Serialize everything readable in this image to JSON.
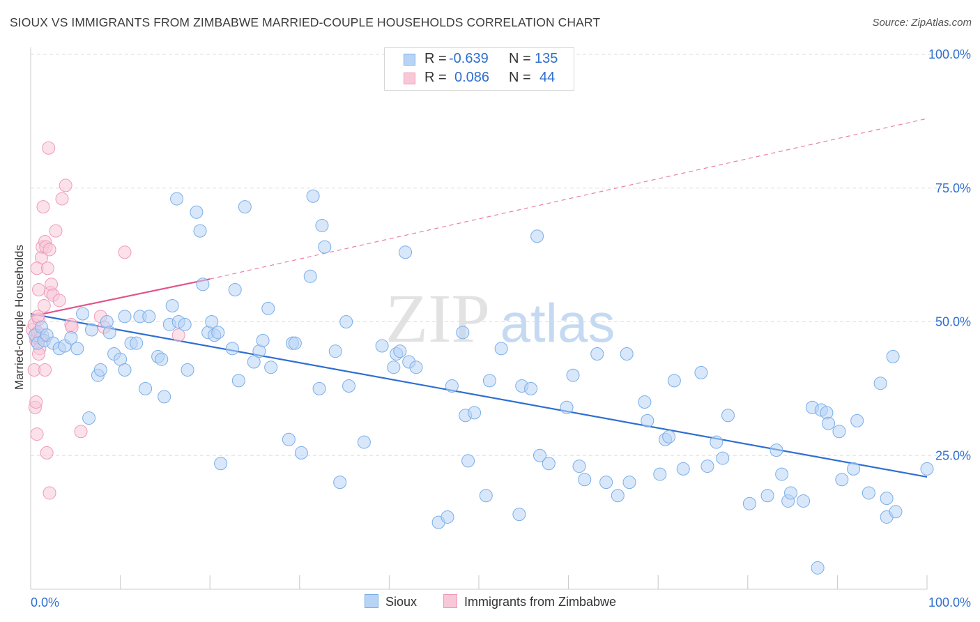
{
  "chart_data": {
    "type": "scatter",
    "title": "SIOUX VS IMMIGRANTS FROM ZIMBABWE MARRIED-COUPLE HOUSEHOLDS CORRELATION CHART",
    "source": "Source: ZipAtlas.com",
    "watermark": {
      "zip": "ZIP",
      "atlas": "atlas"
    },
    "ylabel": "Married-couple Households",
    "xlabel": "",
    "xlim": [
      0,
      100
    ],
    "ylim": [
      0,
      100
    ],
    "x_tick_labels": [
      "0.0%",
      "100.0%"
    ],
    "y_tick_labels": [
      "25.0%",
      "50.0%",
      "75.0%",
      "100.0%"
    ],
    "y_tick_values": [
      25,
      50,
      75,
      100
    ],
    "grid": true,
    "stats": [
      {
        "r_label": "R =",
        "r_value": "-0.639",
        "n_label": "N =",
        "n_value": "135"
      },
      {
        "r_label": "R =",
        "r_value": "0.086",
        "n_label": "N =",
        "n_value": "44"
      }
    ],
    "series": [
      {
        "name": "Sioux",
        "color": "#7aaee8",
        "fill": "#b8d3f5",
        "line_color": "#2f6fd0",
        "trend": {
          "x0": 0,
          "y0": 51.5,
          "x1": 100,
          "y1": 21.0
        },
        "points": [
          [
            0.5,
            47.5
          ],
          [
            0.8,
            46
          ],
          [
            1.2,
            49
          ],
          [
            1.5,
            46.5
          ],
          [
            1.8,
            47.5
          ],
          [
            2.5,
            46
          ],
          [
            3.2,
            45
          ],
          [
            3.8,
            45.5
          ],
          [
            4.5,
            47
          ],
          [
            5.2,
            45
          ],
          [
            5.8,
            51.5
          ],
          [
            6.5,
            32
          ],
          [
            6.8,
            48.5
          ],
          [
            7.5,
            40
          ],
          [
            7.8,
            41
          ],
          [
            8.5,
            50
          ],
          [
            8.8,
            48
          ],
          [
            9.3,
            44
          ],
          [
            10,
            43
          ],
          [
            10.5,
            41
          ],
          [
            10.5,
            51
          ],
          [
            11.2,
            46
          ],
          [
            11.8,
            46
          ],
          [
            12.8,
            37.5
          ],
          [
            12.2,
            51
          ],
          [
            13.2,
            51
          ],
          [
            14.2,
            43.5
          ],
          [
            14.6,
            43
          ],
          [
            14.9,
            36
          ],
          [
            15.5,
            49.5
          ],
          [
            15.8,
            53
          ],
          [
            16.3,
            73
          ],
          [
            16.5,
            50
          ],
          [
            17.2,
            49.5
          ],
          [
            17.5,
            41
          ],
          [
            18.5,
            70.5
          ],
          [
            18.9,
            67
          ],
          [
            19.2,
            57
          ],
          [
            19.8,
            48
          ],
          [
            20.2,
            50
          ],
          [
            20.5,
            47.5
          ],
          [
            20.9,
            48
          ],
          [
            21.2,
            23.5
          ],
          [
            22.5,
            45
          ],
          [
            22.8,
            56
          ],
          [
            23.2,
            39
          ],
          [
            23.9,
            71.5
          ],
          [
            24.9,
            42.5
          ],
          [
            25.5,
            44.5
          ],
          [
            25.9,
            46.5
          ],
          [
            26.5,
            52.5
          ],
          [
            26.8,
            41.5
          ],
          [
            28.8,
            28
          ],
          [
            29.2,
            46
          ],
          [
            29.5,
            46
          ],
          [
            30.2,
            25.5
          ],
          [
            31.2,
            58.5
          ],
          [
            31.5,
            73.5
          ],
          [
            32.2,
            37.5
          ],
          [
            32.5,
            68
          ],
          [
            32.8,
            64
          ],
          [
            34,
            44.5
          ],
          [
            34.5,
            20
          ],
          [
            35.2,
            50
          ],
          [
            35.5,
            38
          ],
          [
            37.2,
            27.5
          ],
          [
            39.2,
            45.5
          ],
          [
            40.5,
            41.5
          ],
          [
            40.8,
            44
          ],
          [
            41.2,
            44.5
          ],
          [
            41.8,
            63
          ],
          [
            42.2,
            42.5
          ],
          [
            43,
            41.5
          ],
          [
            45.5,
            12.5
          ],
          [
            46.5,
            13.5
          ],
          [
            47,
            38
          ],
          [
            48.2,
            48
          ],
          [
            48.5,
            32.5
          ],
          [
            49.5,
            33
          ],
          [
            48.8,
            24
          ],
          [
            50.8,
            17.5
          ],
          [
            51.2,
            39
          ],
          [
            52.5,
            45
          ],
          [
            54.5,
            14
          ],
          [
            54.8,
            38
          ],
          [
            55.8,
            37.5
          ],
          [
            56.5,
            66
          ],
          [
            56.8,
            25
          ],
          [
            57.8,
            23.5
          ],
          [
            59.8,
            34
          ],
          [
            60.5,
            40
          ],
          [
            61.2,
            23
          ],
          [
            61.8,
            20.5
          ],
          [
            63.2,
            44
          ],
          [
            64.2,
            20
          ],
          [
            65.5,
            17.5
          ],
          [
            66.5,
            44
          ],
          [
            66.8,
            20
          ],
          [
            68.5,
            35
          ],
          [
            68.8,
            31.5
          ],
          [
            70.2,
            21.5
          ],
          [
            70.8,
            28
          ],
          [
            71.2,
            28.5
          ],
          [
            71.8,
            39
          ],
          [
            72.8,
            22.5
          ],
          [
            74.8,
            40.5
          ],
          [
            75.5,
            23
          ],
          [
            76.5,
            27.5
          ],
          [
            77.2,
            24.5
          ],
          [
            77.8,
            32.5
          ],
          [
            80.2,
            16
          ],
          [
            82.2,
            17.5
          ],
          [
            83.2,
            26
          ],
          [
            83.8,
            21.5
          ],
          [
            84.5,
            16.5
          ],
          [
            84.8,
            18
          ],
          [
            86.2,
            16.5
          ],
          [
            87.2,
            34
          ],
          [
            87.8,
            4
          ],
          [
            88.2,
            33.5
          ],
          [
            88.8,
            33
          ],
          [
            89,
            31
          ],
          [
            90.2,
            29.5
          ],
          [
            90.5,
            20.5
          ],
          [
            91.8,
            22.5
          ],
          [
            92.2,
            31.5
          ],
          [
            93.5,
            18
          ],
          [
            94.8,
            38.5
          ],
          [
            95.5,
            17
          ],
          [
            95.5,
            13.5
          ],
          [
            96.2,
            43.5
          ],
          [
            96.5,
            14.5
          ],
          [
            100,
            22.5
          ]
        ]
      },
      {
        "name": "Immigrants from Zimbabwe",
        "color": "#f09ab8",
        "fill": "#f8c8d8",
        "line_color": "#e0558a",
        "trend": {
          "x0": 0,
          "y0": 51.0,
          "x1": 20,
          "y1": 58.0
        },
        "dashed_trend": {
          "x0": 20,
          "y0": 58.0,
          "x1": 100,
          "y1": 88.0
        },
        "points": [
          [
            0.2,
            48.5
          ],
          [
            0.4,
            49.5
          ],
          [
            0.5,
            47.5
          ],
          [
            0.6,
            46.5
          ],
          [
            0.7,
            47
          ],
          [
            0.8,
            48
          ],
          [
            0.9,
            50.5
          ],
          [
            0.4,
            41
          ],
          [
            0.5,
            34
          ],
          [
            0.6,
            35
          ],
          [
            0.7,
            29
          ],
          [
            0.8,
            51
          ],
          [
            0.9,
            56
          ],
          [
            1,
            45
          ],
          [
            1.1,
            47
          ],
          [
            1.2,
            62
          ],
          [
            0.7,
            60
          ],
          [
            1.3,
            64
          ],
          [
            1.4,
            71.5
          ],
          [
            1.5,
            53
          ],
          [
            1.6,
            65
          ],
          [
            1.7,
            64
          ],
          [
            1.9,
            60
          ],
          [
            2,
            82.5
          ],
          [
            2.1,
            63.5
          ],
          [
            2.2,
            55.5
          ],
          [
            2.3,
            57
          ],
          [
            2.5,
            55
          ],
          [
            2.8,
            67
          ],
          [
            1.8,
            25.5
          ],
          [
            2.1,
            18
          ],
          [
            3.2,
            54
          ],
          [
            3.5,
            73
          ],
          [
            3.9,
            75.5
          ],
          [
            4.5,
            49.5
          ],
          [
            4.6,
            49
          ],
          [
            5.6,
            29.5
          ],
          [
            7.8,
            51
          ],
          [
            8.2,
            49
          ],
          [
            10.5,
            63
          ],
          [
            16.5,
            47.5
          ],
          [
            1.6,
            41
          ],
          [
            1.3,
            47.5
          ],
          [
            0.9,
            44
          ]
        ]
      }
    ]
  }
}
